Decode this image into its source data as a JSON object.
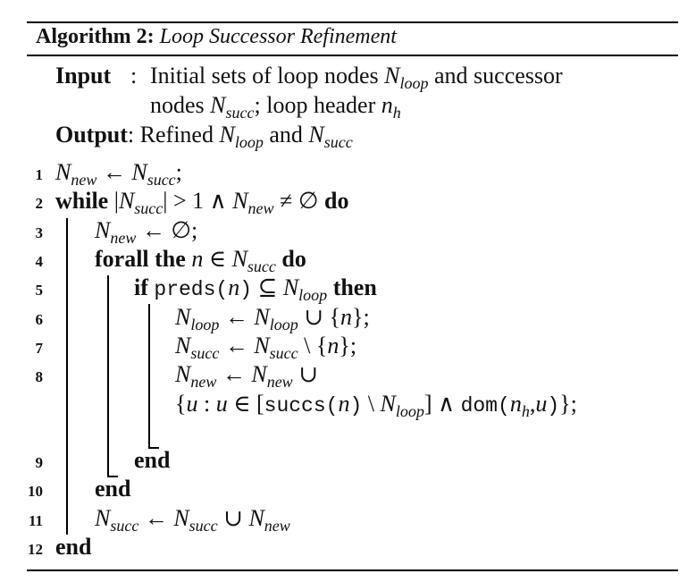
{
  "header": {
    "label": "Algorithm 2:",
    "title": "Loop Successor Refinement"
  },
  "io": {
    "input_label": "Input",
    "input_sep": ":",
    "input_text_1": "Initial sets of loop nodes",
    "input_text_2": "and successor",
    "input_text_3": "nodes",
    "input_text_4": "; loop header",
    "output_label": "Output",
    "output_sep": ":",
    "output_text_1": "Refined",
    "output_text_2": "and"
  },
  "keywords": {
    "while": "while",
    "do": "do",
    "forall": "forall the",
    "if": "if",
    "then": "then",
    "end": "end"
  },
  "symbols": {
    "N": "N",
    "n": "n",
    "u": "u",
    "new": "new",
    "succ": "succ",
    "loop": "loop",
    "h": "h",
    "arrow": "←",
    "semicolon": ";",
    "empty": "∅",
    "union": "∪",
    "setminus": "\\",
    "in": "∈",
    "subseteq": "⊆",
    "and": "∧",
    "neq": "≠",
    "gt1": "> 1",
    "preds": "preds",
    "succs": "succs",
    "dom": "dom"
  },
  "line_numbers": [
    "1",
    "2",
    "3",
    "4",
    "5",
    "6",
    "7",
    "8",
    "9",
    "10",
    "11",
    "12"
  ]
}
